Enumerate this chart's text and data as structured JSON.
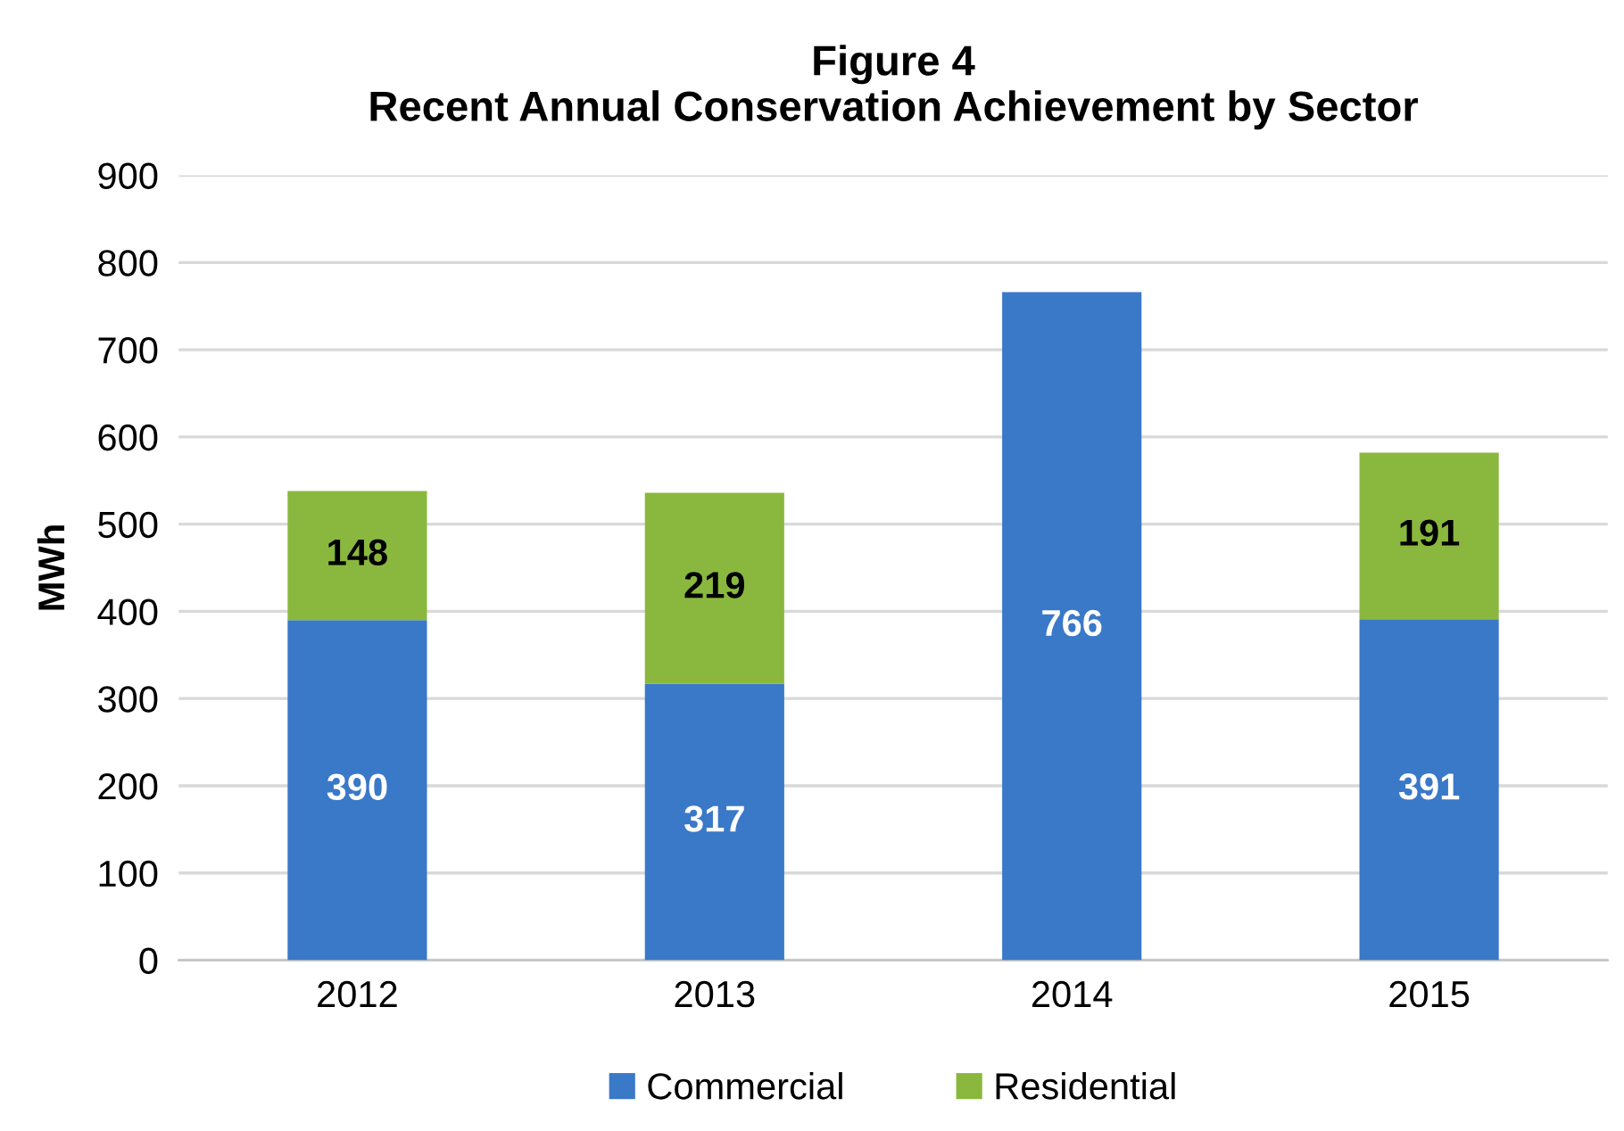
{
  "chart_data": {
    "type": "bar",
    "stacked": true,
    "title": "Figure 4\nRecent Annual Conservation Achievement by Sector",
    "ylabel": "MWh",
    "categories": [
      "2012",
      "2013",
      "2014",
      "2015"
    ],
    "series": [
      {
        "name": "Commercial",
        "color": "#3a78c8",
        "values": [
          390,
          317,
          766,
          391
        ]
      },
      {
        "name": "Residential",
        "color": "#8ab83e",
        "values": [
          148,
          219,
          null,
          191
        ]
      }
    ],
    "ylim": [
      0,
      900
    ],
    "yticks": [
      0,
      100,
      200,
      300,
      400,
      500,
      600,
      700,
      800,
      900
    ],
    "grid": "y",
    "legend": "bottom",
    "data_labels": true
  }
}
